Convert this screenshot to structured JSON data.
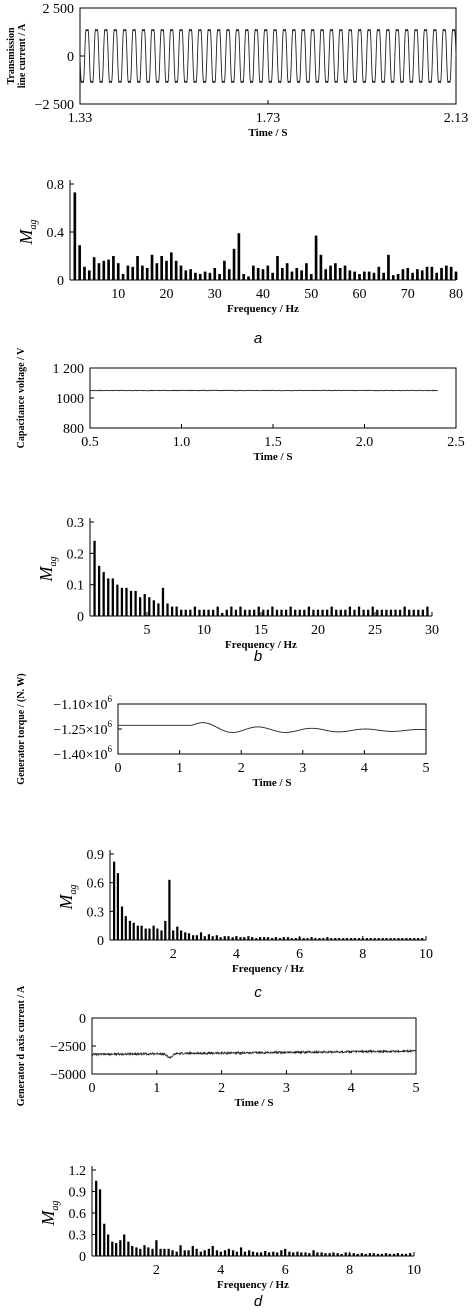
{
  "panel_labels": [
    "a",
    "b",
    "c",
    "d"
  ],
  "chart_data": [
    {
      "id": "a-time",
      "type": "line",
      "xlabel": "Time / S",
      "ylabel": "Transmission\nline current / A",
      "xlim": [
        1.33,
        2.13
      ],
      "ylim": [
        -2500,
        2500
      ],
      "xticks": [
        1.33,
        1.73,
        2.13
      ],
      "xtick_labels": [
        "1.33",
        "1.73",
        "2.13"
      ],
      "yticks": [
        2500,
        0,
        -2500
      ],
      "ytick_labels": [
        "2 500",
        "0",
        "−2 500"
      ],
      "series": [
        {
          "kind": "sine",
          "offset": 0,
          "amplitude": 1600,
          "frequency_hz": 50,
          "noise": 0
        }
      ]
    },
    {
      "id": "a-freq",
      "type": "bar",
      "xlabel": "Frequency / Hz",
      "ylabel": "M",
      "ylabel_sub": "ag",
      "xlim": [
        0,
        80
      ],
      "ylim": [
        0,
        0.8
      ],
      "xticks": [
        10,
        20,
        30,
        40,
        50,
        60,
        70,
        80
      ],
      "xtick_labels": [
        "10",
        "20",
        "30",
        "40",
        "50",
        "60",
        "70",
        "80"
      ],
      "yticks": [
        0.8,
        0.4,
        0
      ],
      "ytick_labels": [
        "0.8",
        "0.4",
        "0"
      ],
      "bar_width": 0.55,
      "x": [
        1,
        2,
        3,
        4,
        5,
        6,
        7,
        8,
        9,
        10,
        11,
        12,
        13,
        14,
        15,
        16,
        17,
        18,
        19,
        20,
        21,
        22,
        23,
        24,
        25,
        26,
        27,
        28,
        29,
        30,
        31,
        32,
        33,
        34,
        35,
        36,
        37,
        38,
        39,
        40,
        41,
        42,
        43,
        44,
        45,
        46,
        47,
        48,
        49,
        50,
        51,
        52,
        53,
        54,
        55,
        56,
        57,
        58,
        59,
        60,
        61,
        62,
        63,
        64,
        65,
        66,
        67,
        68,
        69,
        70,
        71,
        72,
        73,
        74,
        75,
        76,
        77,
        78,
        79,
        80
      ],
      "values": [
        0.73,
        0.29,
        0.11,
        0.08,
        0.19,
        0.14,
        0.16,
        0.17,
        0.2,
        0.14,
        0.05,
        0.12,
        0.11,
        0.2,
        0.12,
        0.1,
        0.21,
        0.14,
        0.2,
        0.16,
        0.23,
        0.16,
        0.12,
        0.08,
        0.09,
        0.06,
        0.05,
        0.07,
        0.06,
        0.1,
        0.05,
        0.16,
        0.09,
        0.26,
        0.39,
        0.05,
        0.03,
        0.12,
        0.1,
        0.09,
        0.12,
        0.06,
        0.2,
        0.1,
        0.14,
        0.07,
        0.1,
        0.08,
        0.14,
        0.05,
        0.37,
        0.21,
        0.09,
        0.12,
        0.14,
        0.1,
        0.12,
        0.08,
        0.07,
        0.05,
        0.07,
        0.07,
        0.06,
        0.11,
        0.06,
        0.21,
        0.04,
        0.05,
        0.09,
        0.1,
        0.06,
        0.09,
        0.08,
        0.11,
        0.11,
        0.06,
        0.1,
        0.12,
        0.11,
        0.07
      ]
    },
    {
      "id": "b-time",
      "type": "line",
      "xlabel": "Time / S",
      "ylabel": "Capacitance voltage / V",
      "xlim": [
        0.5,
        2.5
      ],
      "ylim": [
        800,
        1200
      ],
      "xticks": [
        0.5,
        1.0,
        1.5,
        2.0,
        2.5
      ],
      "xtick_labels": [
        "0.5",
        "1.0",
        "1.5",
        "2.0",
        "2.5"
      ],
      "yticks": [
        1200,
        1000,
        800
      ],
      "ytick_labels": [
        "1 200",
        "1000",
        "800"
      ],
      "series": [
        {
          "kind": "flat",
          "offset": 1050,
          "noise": 2,
          "x_start": 0.5,
          "x_end": 2.4
        }
      ]
    },
    {
      "id": "b-freq",
      "type": "bar",
      "xlabel": "Frequency / Hz",
      "ylabel": "M",
      "ylabel_sub": "ag",
      "xlim": [
        0,
        30
      ],
      "ylim": [
        0,
        0.3
      ],
      "xticks": [
        5,
        10,
        15,
        20,
        25,
        30
      ],
      "xtick_labels": [
        "5",
        "10",
        "15",
        "20",
        "25",
        "30"
      ],
      "yticks": [
        0.3,
        0.2,
        0.1,
        0
      ],
      "ytick_labels": [
        "0.3",
        "0.2",
        "0.1",
        "0"
      ],
      "bar_width": 0.2,
      "x": [
        0.4,
        0.8,
        1.2,
        1.6,
        2.0,
        2.4,
        2.8,
        3.2,
        3.6,
        4.0,
        4.4,
        4.8,
        5.2,
        5.6,
        6.0,
        6.4,
        6.8,
        7.2,
        7.6,
        8.0,
        8.4,
        8.8,
        9.2,
        9.6,
        10.0,
        10.4,
        10.8,
        11.2,
        11.6,
        12.0,
        12.4,
        12.8,
        13.2,
        13.6,
        14.0,
        14.4,
        14.8,
        15.2,
        15.6,
        16.0,
        16.4,
        16.8,
        17.2,
        17.6,
        18.0,
        18.4,
        18.8,
        19.2,
        19.6,
        20.0,
        20.4,
        20.8,
        21.2,
        21.6,
        22.0,
        22.4,
        22.8,
        23.2,
        23.6,
        24.0,
        24.4,
        24.8,
        25.2,
        25.6,
        26.0,
        26.4,
        26.8,
        27.2,
        27.6,
        28.0,
        28.4,
        28.8,
        29.2,
        29.6
      ],
      "values": [
        0.24,
        0.16,
        0.14,
        0.12,
        0.12,
        0.1,
        0.09,
        0.09,
        0.08,
        0.08,
        0.06,
        0.07,
        0.06,
        0.05,
        0.04,
        0.09,
        0.04,
        0.03,
        0.03,
        0.02,
        0.02,
        0.02,
        0.03,
        0.02,
        0.02,
        0.02,
        0.02,
        0.03,
        0.01,
        0.02,
        0.03,
        0.02,
        0.03,
        0.02,
        0.02,
        0.02,
        0.03,
        0.02,
        0.02,
        0.03,
        0.02,
        0.02,
        0.02,
        0.03,
        0.02,
        0.02,
        0.02,
        0.03,
        0.02,
        0.02,
        0.02,
        0.02,
        0.03,
        0.02,
        0.02,
        0.02,
        0.03,
        0.02,
        0.03,
        0.02,
        0.02,
        0.03,
        0.02,
        0.02,
        0.02,
        0.02,
        0.02,
        0.02,
        0.03,
        0.02,
        0.02,
        0.02,
        0.02,
        0.03
      ]
    },
    {
      "id": "c-time",
      "type": "line",
      "xlabel": "Time / S",
      "ylabel": "Generator torque / (N. W)",
      "xlim": [
        0,
        5
      ],
      "ylim": [
        -1400000.0,
        -1100000.0
      ],
      "xticks": [
        0,
        1,
        2,
        3,
        4,
        5
      ],
      "xtick_labels": [
        "0",
        "1",
        "2",
        "3",
        "4",
        "5"
      ],
      "yticks": [
        -1100000.0,
        -1250000.0,
        -1400000.0
      ],
      "ytick_labels": [
        "−1.10×10",
        "−1.25×10",
        "−1.40×10"
      ],
      "ytick_exponent": "6",
      "series": [
        {
          "kind": "damped",
          "offset": -1228000.0,
          "settle": -1258000.0,
          "start": 1.2,
          "amplitude": 28000,
          "decay": 0.45,
          "frequency_hz": 1.15,
          "noise": 0
        }
      ]
    },
    {
      "id": "c-freq",
      "type": "bar",
      "xlabel": "Frequency / Hz",
      "ylabel": "M",
      "ylabel_sub": "ag",
      "xlim": [
        0,
        10
      ],
      "ylim": [
        0,
        0.9
      ],
      "xticks": [
        2,
        4,
        6,
        8,
        10
      ],
      "xtick_labels": [
        "2",
        "4",
        "6",
        "8",
        "10"
      ],
      "yticks": [
        0.9,
        0.6,
        0.3,
        0
      ],
      "ytick_labels": [
        "0.9",
        "0.6",
        "0.3",
        "0"
      ],
      "bar_width": 0.07,
      "x": [
        0.13,
        0.25,
        0.38,
        0.5,
        0.63,
        0.75,
        0.88,
        1.0,
        1.13,
        1.25,
        1.38,
        1.5,
        1.63,
        1.75,
        1.88,
        2.0,
        2.13,
        2.25,
        2.38,
        2.5,
        2.63,
        2.75,
        2.88,
        3.0,
        3.13,
        3.25,
        3.38,
        3.5,
        3.63,
        3.75,
        3.88,
        4.0,
        4.13,
        4.25,
        4.38,
        4.5,
        4.63,
        4.75,
        4.88,
        5.0,
        5.13,
        5.25,
        5.38,
        5.5,
        5.63,
        5.75,
        5.88,
        6.0,
        6.13,
        6.25,
        6.38,
        6.5,
        6.63,
        6.75,
        6.88,
        7.0,
        7.13,
        7.25,
        7.38,
        7.5,
        7.63,
        7.75,
        7.88,
        8.0,
        8.13,
        8.25,
        8.38,
        8.5,
        8.63,
        8.75,
        8.88,
        9.0,
        9.13,
        9.25,
        9.38,
        9.5,
        9.63,
        9.75,
        9.88
      ],
      "values": [
        0.82,
        0.7,
        0.35,
        0.25,
        0.2,
        0.18,
        0.15,
        0.15,
        0.12,
        0.12,
        0.15,
        0.12,
        0.1,
        0.2,
        0.63,
        0.1,
        0.14,
        0.1,
        0.08,
        0.07,
        0.05,
        0.05,
        0.08,
        0.04,
        0.06,
        0.04,
        0.05,
        0.03,
        0.04,
        0.04,
        0.03,
        0.04,
        0.03,
        0.03,
        0.04,
        0.03,
        0.02,
        0.03,
        0.03,
        0.03,
        0.02,
        0.03,
        0.02,
        0.03,
        0.03,
        0.02,
        0.02,
        0.03,
        0.02,
        0.02,
        0.03,
        0.02,
        0.02,
        0.02,
        0.03,
        0.02,
        0.02,
        0.02,
        0.02,
        0.02,
        0.02,
        0.02,
        0.02,
        0.02,
        0.02,
        0.02,
        0.02,
        0.02,
        0.02,
        0.02,
        0.02,
        0.02,
        0.02,
        0.02,
        0.02,
        0.02,
        0.02,
        0.02,
        0.02
      ]
    },
    {
      "id": "d-time",
      "type": "line",
      "xlabel": "Time / S",
      "ylabel": "Generator d axis current / A",
      "xlim": [
        0,
        5
      ],
      "ylim": [
        -5000,
        0
      ],
      "xticks": [
        0,
        1,
        2,
        3,
        4,
        5
      ],
      "xtick_labels": [
        "0",
        "1",
        "2",
        "3",
        "4",
        "5"
      ],
      "yticks": [
        0,
        -2500,
        -5000
      ],
      "ytick_labels": [
        "0",
        "−2500",
        "−5000"
      ],
      "series": [
        {
          "kind": "drift",
          "start_value": -3250,
          "end_value": -2950,
          "noise": 90,
          "dip_at": 1.15,
          "dip_depth": -350
        }
      ]
    },
    {
      "id": "d-freq",
      "type": "bar",
      "xlabel": "Frequency / Hz",
      "ylabel": "M",
      "ylabel_sub": "ag",
      "xlim": [
        0,
        10
      ],
      "ylim": [
        0,
        1.2
      ],
      "xticks": [
        2,
        4,
        6,
        8,
        10
      ],
      "xtick_labels": [
        "2",
        "4",
        "6",
        "8",
        "10"
      ],
      "yticks": [
        1.2,
        0.9,
        0.6,
        0.3,
        0
      ],
      "ytick_labels": [
        "1.2",
        "0.9",
        "0.6",
        "0.3",
        "0"
      ],
      "bar_width": 0.07,
      "x": [
        0.13,
        0.25,
        0.38,
        0.5,
        0.63,
        0.75,
        0.88,
        1.0,
        1.13,
        1.25,
        1.38,
        1.5,
        1.63,
        1.75,
        1.88,
        2.0,
        2.13,
        2.25,
        2.38,
        2.5,
        2.63,
        2.75,
        2.88,
        3.0,
        3.13,
        3.25,
        3.38,
        3.5,
        3.63,
        3.75,
        3.88,
        4.0,
        4.13,
        4.25,
        4.38,
        4.5,
        4.63,
        4.75,
        4.88,
        5.0,
        5.13,
        5.25,
        5.38,
        5.5,
        5.63,
        5.75,
        5.88,
        6.0,
        6.13,
        6.25,
        6.38,
        6.5,
        6.63,
        6.75,
        6.88,
        7.0,
        7.13,
        7.25,
        7.38,
        7.5,
        7.63,
        7.75,
        7.88,
        8.0,
        8.13,
        8.25,
        8.38,
        8.5,
        8.63,
        8.75,
        8.88,
        9.0,
        9.13,
        9.25,
        9.38,
        9.5,
        9.63,
        9.75,
        9.88
      ],
      "values": [
        1.05,
        0.93,
        0.45,
        0.3,
        0.2,
        0.18,
        0.22,
        0.3,
        0.2,
        0.14,
        0.12,
        0.1,
        0.15,
        0.12,
        0.1,
        0.22,
        0.1,
        0.1,
        0.1,
        0.08,
        0.06,
        0.15,
        0.08,
        0.08,
        0.14,
        0.1,
        0.06,
        0.08,
        0.1,
        0.14,
        0.08,
        0.06,
        0.08,
        0.1,
        0.08,
        0.06,
        0.12,
        0.06,
        0.08,
        0.06,
        0.05,
        0.05,
        0.07,
        0.05,
        0.06,
        0.05,
        0.08,
        0.1,
        0.06,
        0.05,
        0.06,
        0.05,
        0.05,
        0.04,
        0.08,
        0.05,
        0.05,
        0.04,
        0.04,
        0.05,
        0.04,
        0.03,
        0.05,
        0.04,
        0.04,
        0.03,
        0.04,
        0.03,
        0.04,
        0.04,
        0.03,
        0.03,
        0.04,
        0.03,
        0.03,
        0.04,
        0.03,
        0.03,
        0.04
      ]
    }
  ]
}
